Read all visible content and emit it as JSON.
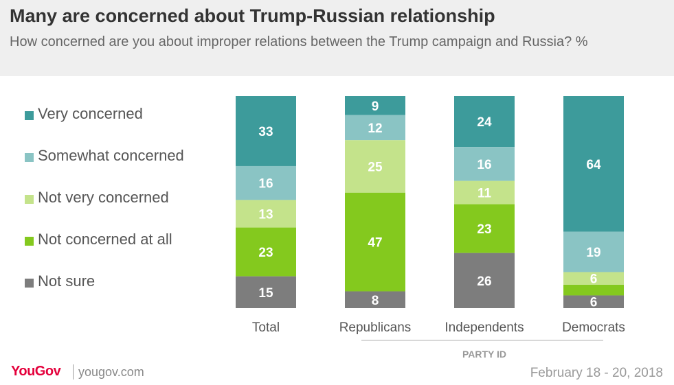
{
  "header": {
    "title": "Many are concerned about Trump-Russian relationship",
    "subtitle": "How concerned are you about improper relations between the Trump campaign and Russia? %"
  },
  "footer": {
    "logo": "YouGov",
    "site": "yougov.com",
    "date": "February 18 - 20, 2018"
  },
  "chart_data": {
    "type": "bar",
    "stacked": true,
    "orientation": "vertical",
    "categories": [
      "Total",
      "Republicans",
      "Independents",
      "Democrats"
    ],
    "group_label": "PARTY ID",
    "series": [
      {
        "name": "Very concerned",
        "color": "#3d9b9b",
        "values": [
          33,
          9,
          24,
          64
        ],
        "labels": [
          "33",
          "9",
          "24",
          "64"
        ]
      },
      {
        "name": "Somewhat concerned",
        "color": "#8ac4c4",
        "values": [
          16,
          12,
          16,
          19
        ],
        "labels": [
          "16",
          "12",
          "16",
          "19"
        ]
      },
      {
        "name": "Not very concerned",
        "color": "#c4e38b",
        "values": [
          13,
          25,
          11,
          6
        ],
        "labels": [
          "13",
          "25",
          "11",
          "6"
        ]
      },
      {
        "name": "Not concerned at all",
        "color": "#84c91e",
        "values": [
          23,
          47,
          23,
          5
        ],
        "labels": [
          "23",
          "47",
          "23",
          ""
        ]
      },
      {
        "name": "Not sure",
        "color": "#7d7d7d",
        "values": [
          15,
          8,
          26,
          6
        ],
        "labels": [
          "15",
          "8",
          "26",
          "6"
        ]
      }
    ],
    "ylim": [
      0,
      100
    ],
    "legend_position": "left",
    "grid": false
  }
}
